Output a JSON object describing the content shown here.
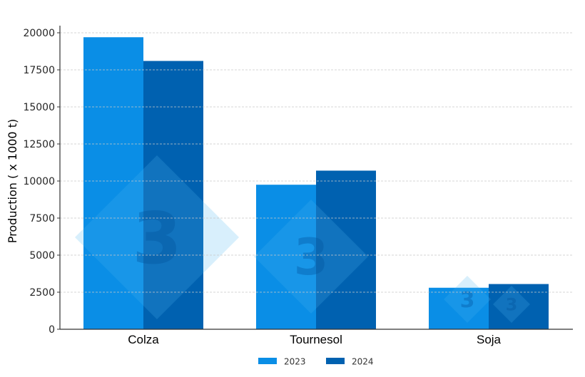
{
  "chart_data": {
    "type": "bar",
    "title": "",
    "xlabel": "",
    "ylabel": "Production ( x 1000 t)",
    "categories": [
      "Colza",
      "Tournesol",
      "Soja"
    ],
    "series": [
      {
        "name": "2023",
        "color": "#0a8ee6",
        "values": [
          19700,
          9750,
          2800
        ]
      },
      {
        "name": "2024",
        "color": "#0061b0",
        "values": [
          18100,
          10700,
          3050
        ]
      }
    ],
    "ylim": [
      0,
      20500
    ],
    "yticks": [
      0,
      2500,
      5000,
      7500,
      10000,
      12500,
      15000,
      17500,
      20000
    ],
    "ytick_labels": [
      "0",
      "2500",
      "5000",
      "7500",
      "10000",
      "12500",
      "15000",
      "17500",
      "20000"
    ],
    "grid": true,
    "grid_style": "dashed horizontal",
    "legend_position": "bottom center",
    "watermark": "3"
  }
}
